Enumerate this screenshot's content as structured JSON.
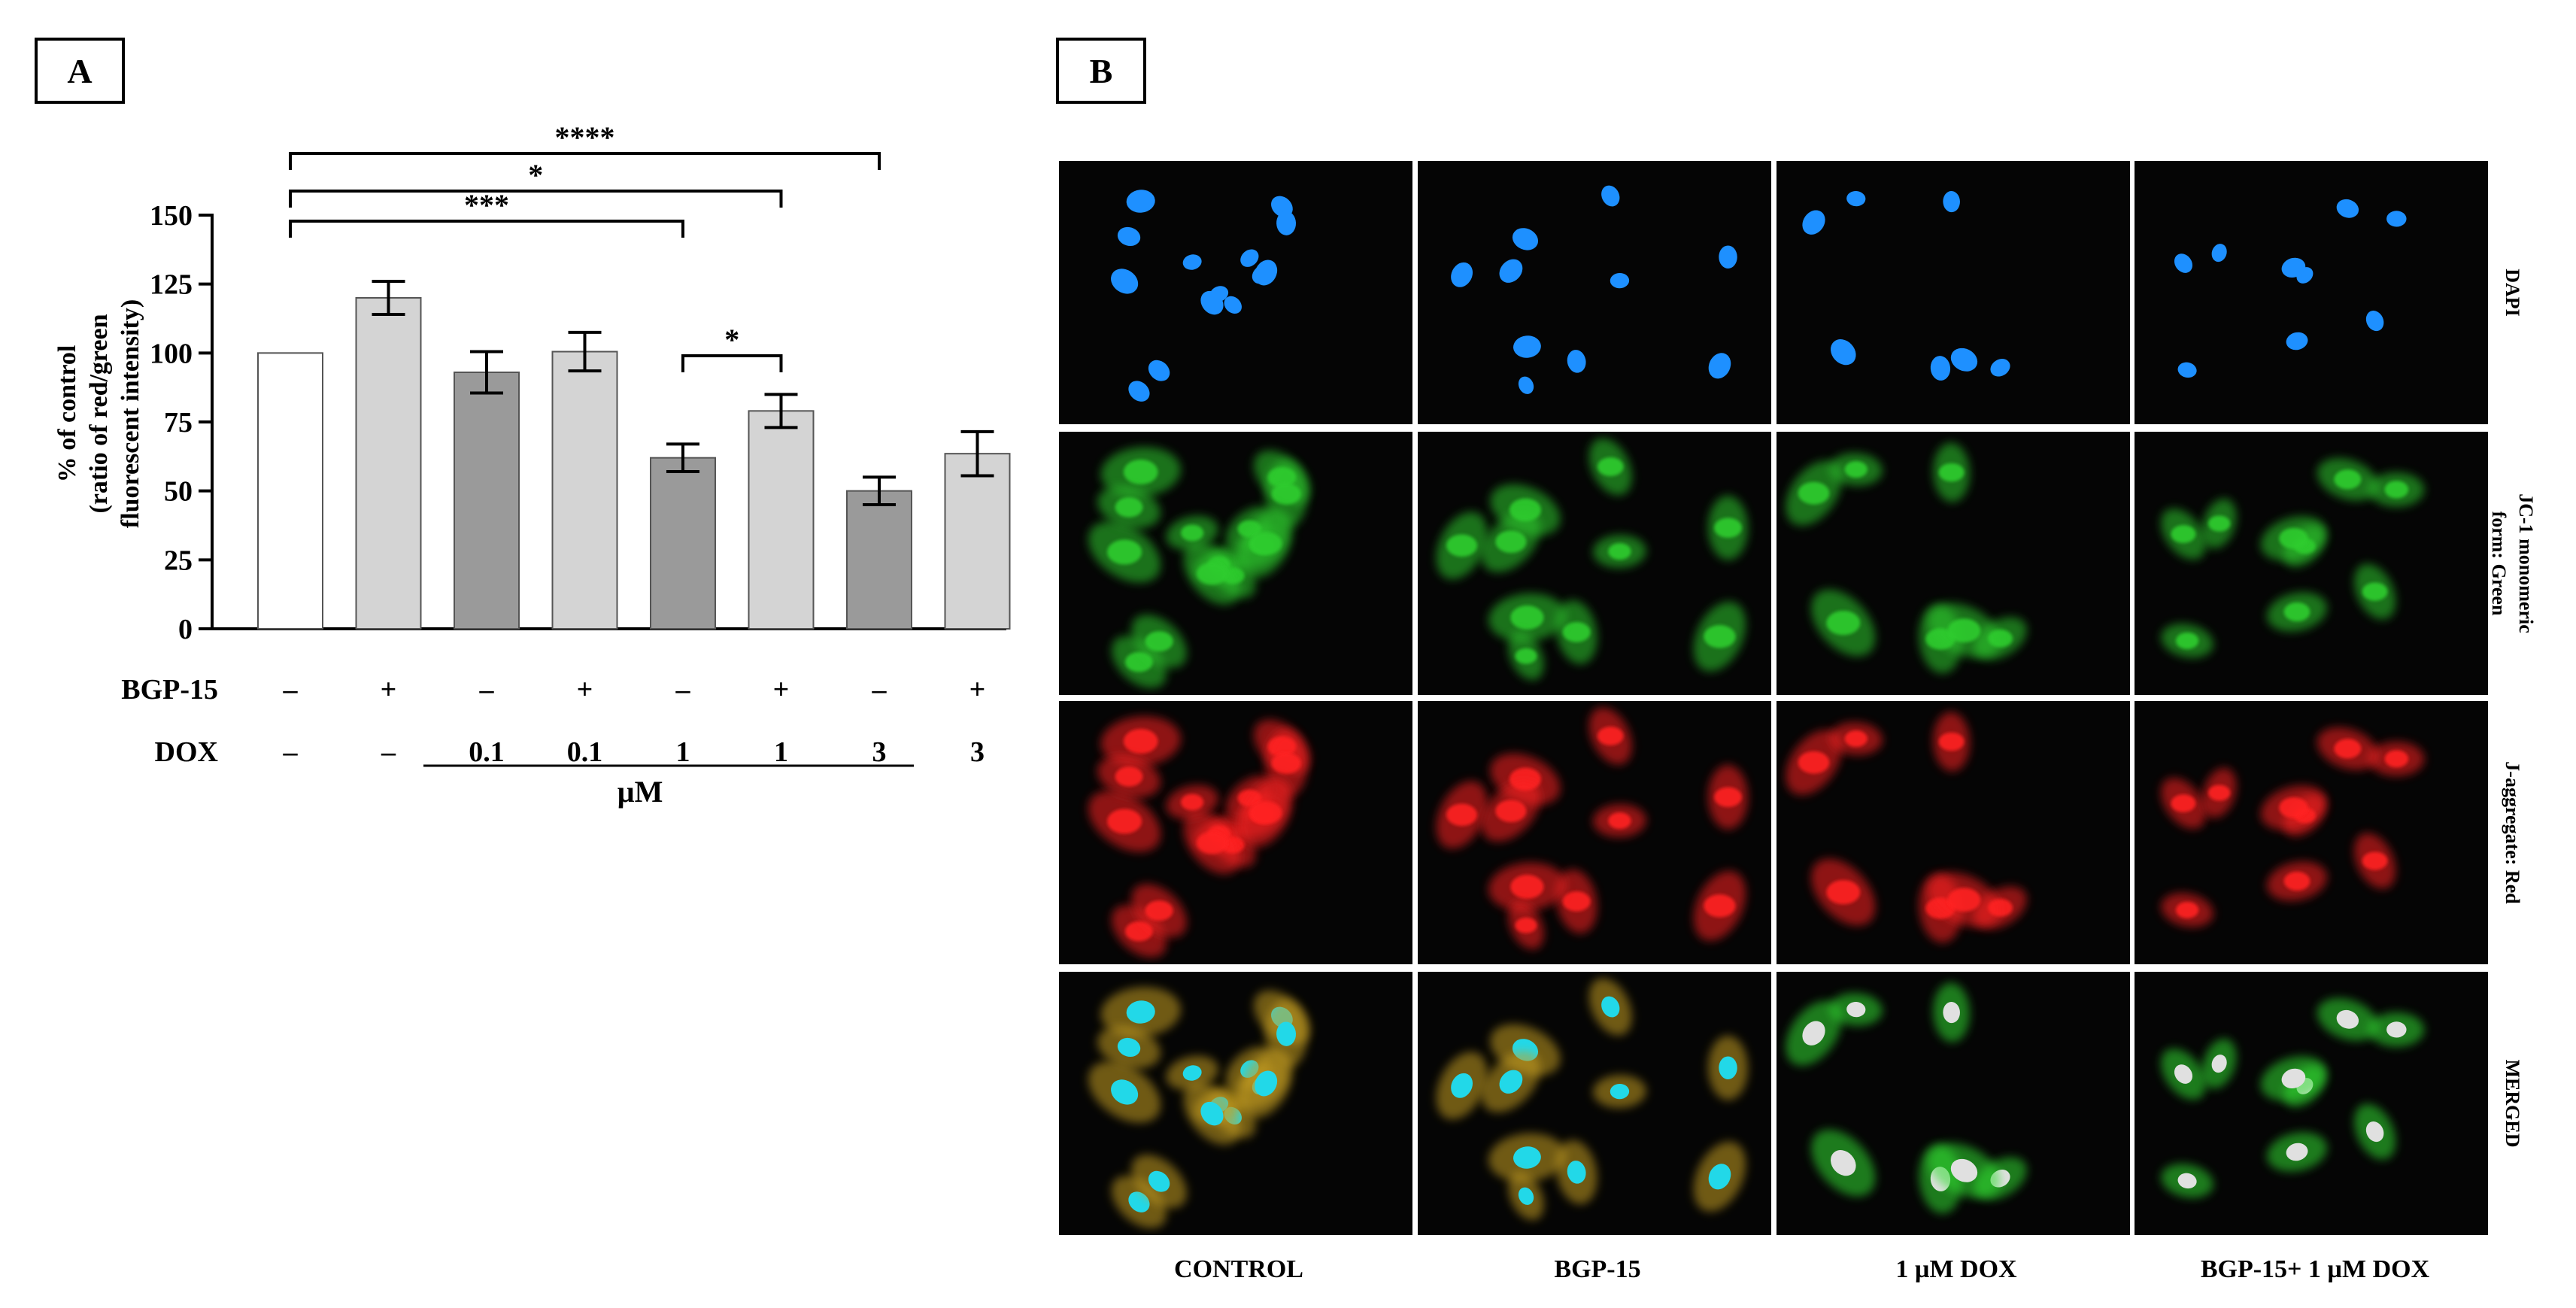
{
  "panels": {
    "A": {
      "label": "A"
    },
    "B": {
      "label": "B"
    }
  },
  "chart_data": {
    "type": "bar",
    "ylabel_lines": [
      "% of control",
      "(ratio of red/green",
      "fluorescent intensity)"
    ],
    "ylim": [
      0,
      150
    ],
    "yticks": [
      0,
      25,
      50,
      75,
      100,
      125,
      150
    ],
    "values": [
      100,
      120,
      93,
      100.5,
      62,
      79,
      50,
      63.5
    ],
    "errors": [
      0,
      6,
      7.5,
      7,
      5,
      6,
      5,
      8
    ],
    "fills": [
      "#ffffff",
      "#d4d4d4",
      "#9a9a9a",
      "#d4d4d4",
      "#9a9a9a",
      "#d4d4d4",
      "#9a9a9a",
      "#d4d4d4"
    ],
    "treatments": [
      {
        "name": "BGP-15",
        "values": [
          "–",
          "+",
          "–",
          "+",
          "–",
          "+",
          "–",
          "+"
        ]
      },
      {
        "name": "DOX",
        "values": [
          "–",
          "–",
          "0.1",
          "0.1",
          "1",
          "1",
          "3",
          "3"
        ]
      }
    ],
    "unit_label": "µM",
    "significance": [
      {
        "from": 0,
        "to": 4,
        "label": "***"
      },
      {
        "from": 0,
        "to": 5,
        "label": "*"
      },
      {
        "from": 0,
        "to": 6,
        "label": "****"
      },
      {
        "from": 4,
        "to": 5,
        "label": "*"
      }
    ]
  },
  "micrographs": {
    "columns": [
      "CONTROL",
      "BGP-15",
      "1 µM DOX",
      "BGP-15+ 1 µM DOX"
    ],
    "rows": [
      {
        "lines": [
          "DAPI"
        ]
      },
      {
        "lines": [
          "JC-1 monomeric",
          "form: Green"
        ]
      },
      {
        "lines": [
          "J-aggregate: Red"
        ]
      },
      {
        "lines": [
          "MERGED"
        ]
      }
    ],
    "row_colors": [
      "#1e90ff",
      "#2ecc2e",
      "#ff2020",
      "#44dd44"
    ]
  }
}
